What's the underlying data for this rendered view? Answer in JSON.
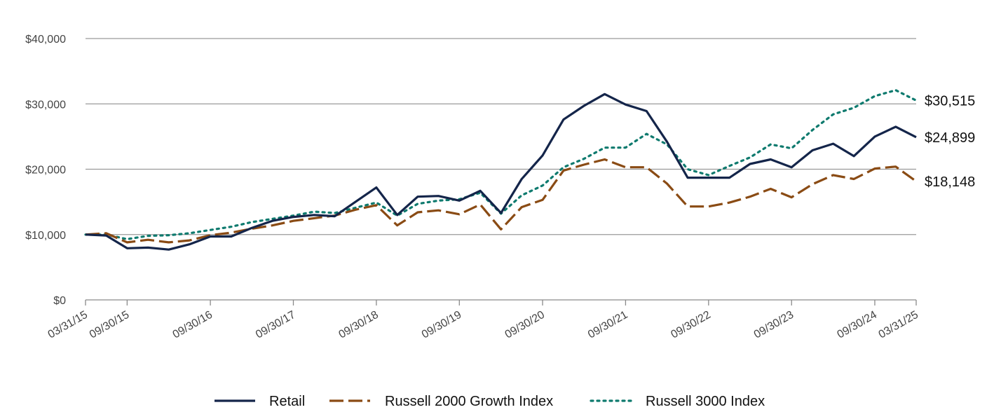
{
  "chart_data": {
    "type": "line",
    "title": "",
    "xlabel": "",
    "ylabel": "",
    "ylim": [
      0,
      40000
    ],
    "y_ticks": [
      0,
      10000,
      20000,
      30000,
      40000
    ],
    "y_tick_labels": [
      "$0",
      "$10,000",
      "$20,000",
      "$30,000",
      "$40,000"
    ],
    "x_tick_labels": [
      "03/31/15",
      "09/30/15",
      "09/30/16",
      "09/30/17",
      "09/30/18",
      "09/30/19",
      "09/30/20",
      "09/30/21",
      "09/30/22",
      "09/30/23",
      "09/30/24",
      "03/31/25"
    ],
    "x_tick_dates": [
      "2015-03-31",
      "2015-09-30",
      "2016-09-30",
      "2017-09-30",
      "2018-09-30",
      "2019-09-30",
      "2020-09-30",
      "2021-09-30",
      "2022-09-30",
      "2023-09-30",
      "2024-09-30",
      "2025-03-31"
    ],
    "x": [
      "2015-03-31",
      "2015-06-30",
      "2015-09-30",
      "2015-12-31",
      "2016-03-31",
      "2016-06-30",
      "2016-09-30",
      "2016-12-31",
      "2017-03-31",
      "2017-06-30",
      "2017-09-30",
      "2017-12-31",
      "2018-03-31",
      "2018-06-30",
      "2018-09-30",
      "2018-12-31",
      "2019-03-31",
      "2019-06-30",
      "2019-09-30",
      "2019-12-31",
      "2020-03-31",
      "2020-06-30",
      "2020-09-30",
      "2020-12-31",
      "2021-03-31",
      "2021-06-30",
      "2021-09-30",
      "2021-12-31",
      "2022-03-31",
      "2022-06-30",
      "2022-09-30",
      "2022-12-31",
      "2023-03-31",
      "2023-06-30",
      "2023-09-30",
      "2023-12-31",
      "2024-03-31",
      "2024-06-30",
      "2024-09-30",
      "2024-12-31",
      "2025-03-31"
    ],
    "series": [
      {
        "name": "Retail",
        "color": "#14254a",
        "style": "solid",
        "end_label": "$24,899",
        "values": [
          10000,
          9850,
          7900,
          8000,
          7700,
          8500,
          9700,
          9700,
          11000,
          12100,
          12700,
          13000,
          12800,
          15000,
          17200,
          13000,
          15800,
          15900,
          15200,
          16700,
          13300,
          18500,
          22100,
          27600,
          29700,
          31500,
          29900,
          28900,
          24200,
          18700,
          18700,
          18700,
          20800,
          21500,
          20300,
          22900,
          23900,
          22000,
          25000,
          26500,
          24899
        ]
      },
      {
        "name": "Russell 2000 Growth Index",
        "color": "#8a4b14",
        "style": "dashed",
        "end_label": "$18,148",
        "values": [
          10000,
          10200,
          8800,
          9200,
          8800,
          9100,
          9900,
          10300,
          10900,
          11400,
          12100,
          12500,
          12900,
          13800,
          14500,
          11400,
          13400,
          13700,
          13100,
          14600,
          10800,
          14200,
          15300,
          19800,
          20700,
          21500,
          20300,
          20300,
          17800,
          14300,
          14300,
          14900,
          15800,
          17000,
          15700,
          17700,
          19100,
          18500,
          20100,
          20400,
          18148
        ]
      },
      {
        "name": "Russell 3000 Index",
        "color": "#0e7a6e",
        "style": "dotted",
        "end_label": "$30,515",
        "values": [
          10000,
          10000,
          9300,
          9800,
          9900,
          10200,
          10700,
          11200,
          11900,
          12400,
          12900,
          13500,
          13300,
          14100,
          14900,
          12900,
          14700,
          15200,
          15400,
          16400,
          13200,
          16000,
          17500,
          20300,
          21600,
          23300,
          23300,
          25400,
          23800,
          20000,
          19100,
          20500,
          21800,
          23800,
          23200,
          26000,
          28400,
          29400,
          31200,
          32100,
          30515
        ]
      }
    ],
    "grid": true,
    "legend": "bottom-center"
  }
}
